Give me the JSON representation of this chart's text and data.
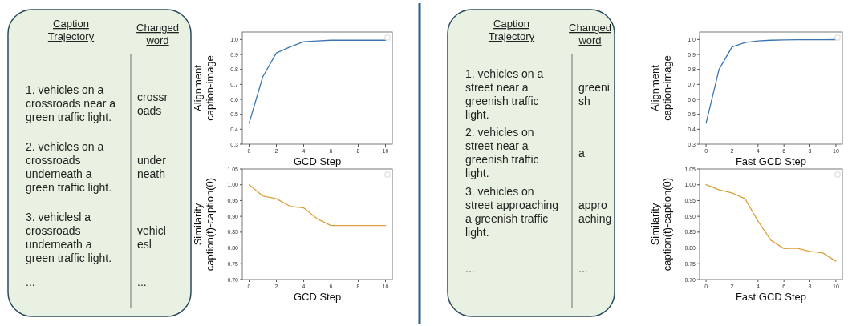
{
  "chart_data": [
    {
      "type": "other",
      "annotations": [
        "Caption\nTrajectory",
        "Changed\nword",
        "1. vehicles on a\ncrossroads near a\ngreen traffic light.",
        "crossr\noads",
        "2. vehicles on a\ncrossroads\nunderneath a\ngreen traffic light.",
        "under\nneath",
        "3. vehiclesl a\ncrossroads\nunderneath a\ngreen traffic light.",
        "vehicl\nesl",
        "...",
        "..."
      ]
    },
    {
      "type": "line",
      "xlabel": "GCD Step",
      "ylabel": "Alignment\ncaption-image",
      "x": [
        0,
        1,
        2,
        3,
        4,
        5,
        6,
        7,
        8,
        9,
        10
      ],
      "series": [
        {
          "color": "#3b75af",
          "values": [
            0.44,
            0.75,
            0.91,
            0.95,
            0.985,
            0.99,
            0.995,
            0.995,
            0.995,
            0.995,
            0.995
          ]
        }
      ],
      "xlim": [
        -0.5,
        10.5
      ],
      "xticks": [
        0,
        2,
        4,
        6,
        8,
        10
      ],
      "ylim": [
        0.3,
        1.05
      ],
      "yticks": [
        {
          "value": 0.3,
          "label": "0.3"
        },
        {
          "value": 0.4,
          "label": "0.4"
        },
        {
          "value": 0.5,
          "label": "0.5"
        },
        {
          "value": 0.6,
          "label": "0.6"
        },
        {
          "value": 0.7,
          "label": "0.7"
        },
        {
          "value": 0.8,
          "label": "0.8"
        },
        {
          "value": 0.9,
          "label": "0.9"
        },
        {
          "value": 1.0,
          "label": "1.0"
        }
      ],
      "grid": false
    },
    {
      "type": "line",
      "xlabel": "GCD Step",
      "ylabel": "Similarity\ncaption(t)-caption(0)",
      "x": [
        0,
        1,
        2,
        3,
        4,
        5,
        6,
        7,
        8,
        9,
        10
      ],
      "series": [
        {
          "color": "#dba03a",
          "values": [
            1.0,
            0.965,
            0.956,
            0.932,
            0.927,
            0.892,
            0.871,
            0.871,
            0.871,
            0.871,
            0.871
          ]
        }
      ],
      "xlim": [
        -0.5,
        10.5
      ],
      "xticks": [
        0,
        2,
        4,
        6,
        8,
        10
      ],
      "ylim": [
        0.7,
        1.05
      ],
      "yticks": [
        {
          "value": 0.7,
          "label": "0.70"
        },
        {
          "value": 0.75,
          "label": "0.75"
        },
        {
          "value": 0.8,
          "label": "0.80"
        },
        {
          "value": 0.85,
          "label": "0.85"
        },
        {
          "value": 0.9,
          "label": "0.90"
        },
        {
          "value": 0.95,
          "label": "0.95"
        },
        {
          "value": 1.0,
          "label": "1.00"
        },
        {
          "value": 1.05,
          "label": "1.05"
        }
      ],
      "grid": false
    },
    {
      "type": "other",
      "annotations": [
        "Caption\nTrajectory",
        "Changed\nword",
        "1. vehicles on a\nstreet near a\ngreenish traffic\nlight.",
        "greeni\nsh",
        "2. vehicles on\nstreet near a\ngreenish traffic\nlight.",
        "a",
        "3. vehicles on\nstreet approaching\na greenish traffic\nlight.",
        "appro\naching",
        "...",
        "..."
      ]
    },
    {
      "type": "line",
      "xlabel": "Fast GCD Step",
      "ylabel": "Alignment\ncaption-image",
      "x": [
        0,
        1,
        2,
        3,
        4,
        5,
        6,
        7,
        8,
        9,
        10
      ],
      "series": [
        {
          "color": "#3b75af",
          "values": [
            0.44,
            0.8,
            0.95,
            0.98,
            0.99,
            0.995,
            0.997,
            0.998,
            0.998,
            0.998,
            0.999
          ]
        }
      ],
      "xlim": [
        -0.5,
        10.5
      ],
      "xticks": [
        0,
        2,
        4,
        6,
        8,
        10
      ],
      "ylim": [
        0.3,
        1.05
      ],
      "yticks": [
        {
          "value": 0.3,
          "label": "0.3"
        },
        {
          "value": 0.4,
          "label": "0.4"
        },
        {
          "value": 0.5,
          "label": "0.5"
        },
        {
          "value": 0.6,
          "label": "0.6"
        },
        {
          "value": 0.7,
          "label": "0.7"
        },
        {
          "value": 0.8,
          "label": "0.8"
        },
        {
          "value": 0.9,
          "label": "0.9"
        },
        {
          "value": 1.0,
          "label": "1.0"
        }
      ],
      "grid": false
    },
    {
      "type": "line",
      "xlabel": "Fast GCD Step",
      "ylabel": "Similarity\ncaption(t)-caption(0)",
      "x": [
        0,
        1,
        2,
        3,
        4,
        5,
        6,
        7,
        8,
        9,
        10
      ],
      "series": [
        {
          "color": "#dba03a",
          "values": [
            1.0,
            0.984,
            0.974,
            0.956,
            0.885,
            0.824,
            0.798,
            0.799,
            0.789,
            0.784,
            0.758
          ]
        }
      ],
      "xlim": [
        -0.5,
        10.5
      ],
      "xticks": [
        0,
        2,
        4,
        6,
        8,
        10
      ],
      "ylim": [
        0.7,
        1.05
      ],
      "yticks": [
        {
          "value": 0.7,
          "label": "0.70"
        },
        {
          "value": 0.75,
          "label": "0.75"
        },
        {
          "value": 0.8,
          "label": "0.80"
        },
        {
          "value": 0.85,
          "label": "0.85"
        },
        {
          "value": 0.9,
          "label": "0.90"
        },
        {
          "value": 0.95,
          "label": "0.95"
        },
        {
          "value": 1.0,
          "label": "1.00"
        },
        {
          "value": 1.05,
          "label": "1.05"
        }
      ],
      "grid": false
    }
  ]
}
